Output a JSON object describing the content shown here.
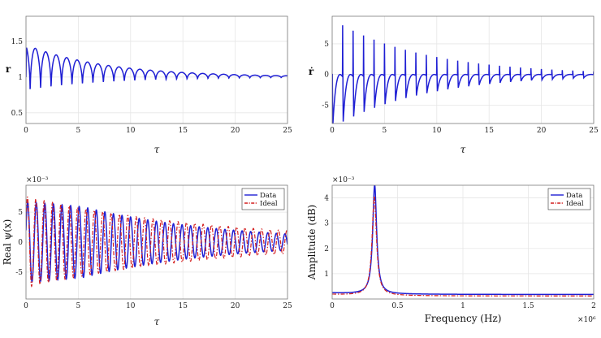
{
  "chart_data": [
    {
      "type": "line",
      "id": "r",
      "title": "",
      "xlabel": "τ",
      "ylabel": "r",
      "xlim": [
        0,
        25
      ],
      "ylim": [
        0.35,
        1.85
      ],
      "xticks": [
        "0",
        "5",
        "10",
        "15",
        "20",
        "25"
      ],
      "xtick_values": [
        0,
        5,
        10,
        15,
        20,
        25
      ],
      "yticks": [
        "0.5",
        "1",
        "1.5"
      ],
      "ytick_values": [
        0.5,
        1.0,
        1.5
      ],
      "grid": true,
      "series": [
        {
          "color": "#1f1fd4",
          "style": "solid",
          "model": {
            "base": 1.0,
            "amp": 0.82,
            "decay": 0.13,
            "freq": 1.0,
            "phase": -0.6,
            "sharp": 2.6
          }
        }
      ]
    },
    {
      "type": "line",
      "id": "rdot",
      "title": "",
      "xlabel": "τ",
      "ylabel": "ṙ",
      "xlim": [
        0,
        25
      ],
      "ylim": [
        -8,
        9.5
      ],
      "xticks": [
        "0",
        "5",
        "10",
        "15",
        "20",
        "25"
      ],
      "xtick_values": [
        0,
        5,
        10,
        15,
        20,
        25
      ],
      "yticks": [
        "-5",
        "0",
        "5"
      ],
      "ytick_values": [
        -5,
        0,
        5
      ],
      "grid": true,
      "series": [
        {
          "color": "#1f1fd4",
          "style": "solid",
          "model": {
            "base": 0.0,
            "amp": 9.0,
            "decay": 0.115,
            "freq": 1.0,
            "phase": 0.0,
            "sawtooth": true
          }
        }
      ]
    },
    {
      "type": "line",
      "id": "psi",
      "title": "",
      "xlabel": "τ",
      "ylabel": "Real ψ(x)",
      "exponent_label": "×10⁻³",
      "xlim": [
        0,
        25
      ],
      "ylim": [
        -9.5,
        9.5
      ],
      "xticks": [
        "0",
        "5",
        "10",
        "15",
        "20",
        "25"
      ],
      "xtick_values": [
        0,
        5,
        10,
        15,
        20,
        25
      ],
      "yticks": [
        "-5",
        "0",
        "5"
      ],
      "ytick_values": [
        -5,
        0,
        5
      ],
      "grid": true,
      "legend": {
        "position": "top-right",
        "entries": [
          "Data",
          "Ideal"
        ]
      },
      "series": [
        {
          "name": "Data",
          "color": "#1f1fd4",
          "style": "solid",
          "model": {
            "type": "beat",
            "amp": 8.9,
            "grow_to": 5.5,
            "decay": 0.075,
            "freq": 1.22,
            "phase": 0.3
          }
        },
        {
          "name": "Ideal",
          "color": "#d41f1f",
          "style": "dashdot",
          "model": {
            "type": "beat",
            "amp": 7.6,
            "decay": 0.055,
            "freq": 1.25,
            "phase": 0.5
          }
        }
      ]
    },
    {
      "type": "line",
      "id": "spectrum",
      "title": "",
      "xlabel": "Frequency (Hz)",
      "ylabel": "Amplitude (dB)",
      "exponent_label": "×10⁻³",
      "x_exponent_label": "×10⁶",
      "xlim": [
        0,
        2
      ],
      "ylim": [
        0,
        4.5
      ],
      "xticks": [
        "0",
        "0.5",
        "1",
        "1.5",
        "2"
      ],
      "xtick_values": [
        0,
        0.5,
        1.0,
        1.5,
        2.0
      ],
      "yticks": [
        "1",
        "2",
        "3",
        "4"
      ],
      "ytick_values": [
        1,
        2,
        3,
        4
      ],
      "grid": true,
      "legend": {
        "position": "top-right",
        "entries": [
          "Data",
          "Ideal"
        ]
      },
      "series": [
        {
          "name": "Data",
          "color": "#1f1fd4",
          "style": "solid",
          "model": {
            "type": "peak",
            "floor": 0.18,
            "peak_x": 0.325,
            "peak_y": 4.5,
            "width": 0.018
          }
        },
        {
          "name": "Ideal",
          "color": "#d41f1f",
          "style": "dashdot",
          "model": {
            "type": "peak",
            "floor": 0.12,
            "peak_x": 0.322,
            "peak_y": 4.05,
            "width": 0.02
          }
        }
      ]
    }
  ]
}
